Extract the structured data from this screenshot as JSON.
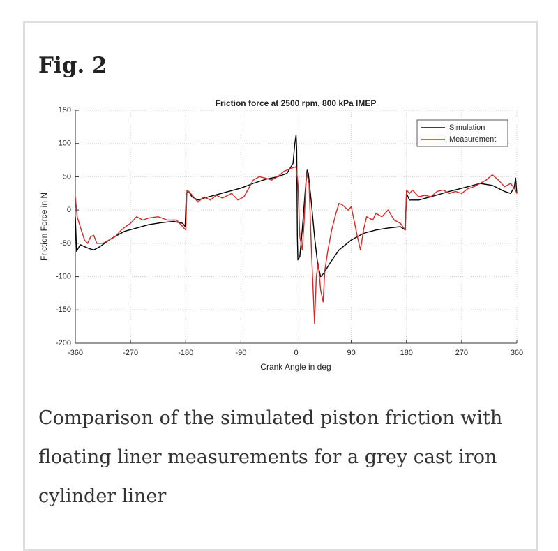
{
  "figure_label": "Fig. 2",
  "caption": "Comparison of the simulated piston friction with floating liner measurements for a grey cast iron cylinder liner",
  "chart_data": {
    "type": "line",
    "title": "Friction force at 2500 rpm, 800 kPa IMEP",
    "xlabel": "Crank Angle in deg",
    "ylabel": "Friction Force in N",
    "xlim": [
      -360,
      360
    ],
    "xticks": [
      -360,
      -270,
      -180,
      -90,
      0,
      90,
      180,
      270,
      360
    ],
    "ylim": [
      -200,
      150
    ],
    "yticks": [
      -200,
      -150,
      -100,
      -50,
      0,
      50,
      100,
      150
    ],
    "grid": true,
    "legend": "upper right",
    "series": [
      {
        "name": "Simulation",
        "color": "#000000",
        "x": [
          -360,
          -358,
          -352,
          -340,
          -330,
          -320,
          -300,
          -280,
          -260,
          -240,
          -220,
          -200,
          -185,
          -181,
          -179,
          -175,
          -170,
          -160,
          -150,
          -130,
          -110,
          -90,
          -70,
          -50,
          -30,
          -15,
          -5,
          -2,
          0,
          1,
          2,
          3,
          6,
          10,
          15,
          18,
          20,
          25,
          30,
          35,
          40,
          45,
          55,
          70,
          90,
          110,
          130,
          150,
          170,
          178,
          180,
          185,
          200,
          220,
          250,
          280,
          300,
          320,
          340,
          350,
          356,
          358,
          360
        ],
        "values": [
          -10,
          -62,
          -52,
          -57,
          -60,
          -55,
          -42,
          -32,
          -27,
          -22,
          -19,
          -17,
          -20,
          -25,
          25,
          28,
          20,
          15,
          18,
          23,
          28,
          33,
          40,
          46,
          50,
          55,
          70,
          100,
          113,
          90,
          -40,
          -75,
          -70,
          -30,
          30,
          60,
          55,
          10,
          -40,
          -80,
          -100,
          -95,
          -80,
          -60,
          -45,
          -35,
          -30,
          -27,
          -25,
          -30,
          25,
          15,
          15,
          20,
          28,
          35,
          40,
          37,
          28,
          25,
          35,
          48,
          25
        ]
      },
      {
        "name": "Measurement",
        "color": "#d62728",
        "x": [
          -360,
          -357,
          -352,
          -345,
          -340,
          -335,
          -330,
          -325,
          -315,
          -305,
          -295,
          -285,
          -278,
          -270,
          -260,
          -250,
          -240,
          -225,
          -210,
          -195,
          -185,
          -180,
          -178,
          -172,
          -160,
          -150,
          -140,
          -130,
          -120,
          -105,
          -95,
          -85,
          -70,
          -60,
          -50,
          -40,
          -30,
          -20,
          -10,
          0,
          3,
          6,
          10,
          13,
          16,
          18,
          21,
          25,
          30,
          33,
          36,
          40,
          44,
          47,
          52,
          58,
          65,
          70,
          75,
          85,
          90,
          100,
          105,
          110,
          115,
          125,
          130,
          140,
          150,
          160,
          170,
          178,
          180,
          185,
          190,
          200,
          210,
          220,
          230,
          240,
          250,
          260,
          270,
          280,
          290,
          300,
          310,
          320,
          330,
          340,
          350,
          358,
          360
        ],
        "values": [
          20,
          -10,
          -25,
          -45,
          -50,
          -40,
          -38,
          -50,
          -50,
          -45,
          -40,
          -30,
          -25,
          -20,
          -10,
          -15,
          -12,
          -10,
          -15,
          -15,
          -25,
          -30,
          30,
          25,
          12,
          20,
          15,
          22,
          18,
          25,
          15,
          20,
          45,
          50,
          48,
          45,
          50,
          58,
          62,
          65,
          40,
          -40,
          -60,
          -20,
          40,
          55,
          40,
          -60,
          -170,
          -100,
          -80,
          -120,
          -138,
          -90,
          -60,
          -30,
          -5,
          10,
          8,
          0,
          5,
          -40,
          -60,
          -30,
          -10,
          -15,
          -5,
          -10,
          0,
          -15,
          -20,
          -30,
          30,
          25,
          30,
          20,
          22,
          20,
          28,
          30,
          25,
          28,
          25,
          32,
          35,
          40,
          45,
          53,
          45,
          35,
          40,
          30,
          25
        ]
      }
    ]
  }
}
